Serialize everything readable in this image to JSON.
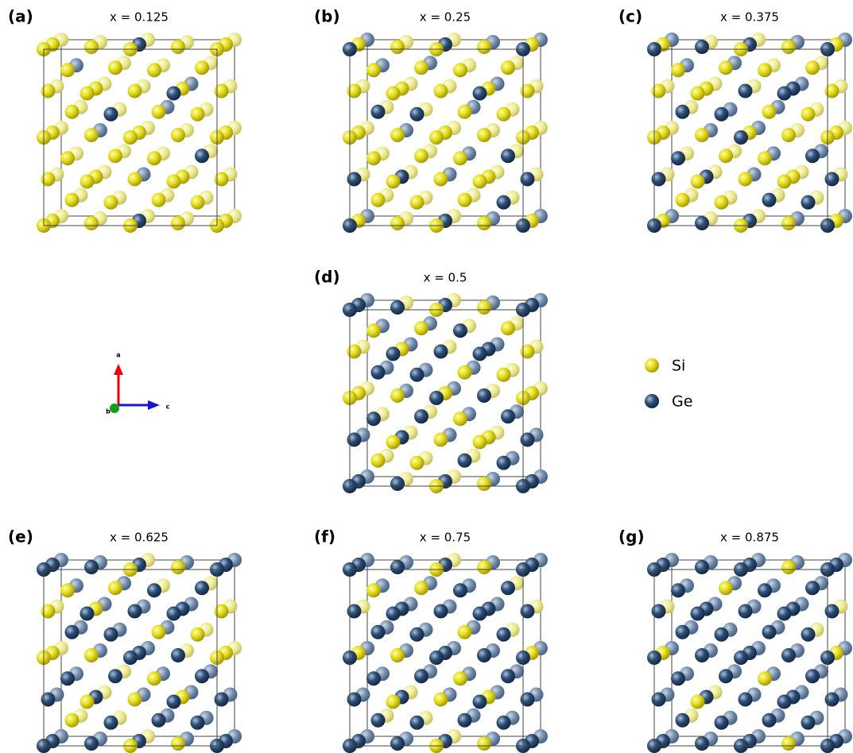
{
  "panels": [
    {
      "label": "(a)",
      "title": "x = 0.125"
    },
    {
      "label": "(b)",
      "title": "x = 0.25"
    },
    {
      "label": "(c)",
      "title": "x = 0.375"
    },
    {
      "label": "(d)",
      "title": "x = 0.5"
    },
    {
      "label": "(e)",
      "title": "x = 0.625"
    },
    {
      "label": "(f)",
      "title": "x = 0.75"
    },
    {
      "label": "(g)",
      "title": "x = 0.875"
    }
  ],
  "legend": [
    {
      "label": "Si"
    },
    {
      "label": "Ge"
    }
  ],
  "axes": {
    "a": "a",
    "b": "b",
    "c": "c"
  }
}
